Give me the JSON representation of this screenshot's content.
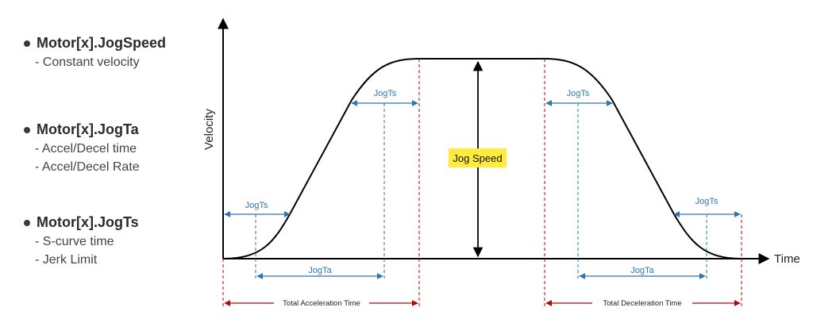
{
  "params": [
    {
      "title": "Motor[x].JogSpeed",
      "desc": [
        "- Constant velocity"
      ]
    },
    {
      "title": "Motor[x].JogTa",
      "desc": [
        "- Accel/Decel time",
        "- Accel/Decel Rate"
      ]
    },
    {
      "title": "Motor[x].JogTs",
      "desc": [
        "- S-curve time",
        "- Jerk Limit"
      ]
    }
  ],
  "diagram": {
    "y_axis_label": "Velocity",
    "x_axis_label": "Time",
    "jog_speed_label": "Jog Speed",
    "jogts_label": "JogTs",
    "jogta_label": "JogTa",
    "total_accel_label": "Total Acceleration Time",
    "total_decel_label": "Total Deceleration Time",
    "colors": {
      "dimension": "#2e75b6",
      "total": "#c00000",
      "highlight": "#ffeb3b",
      "curve": "#000000"
    }
  }
}
